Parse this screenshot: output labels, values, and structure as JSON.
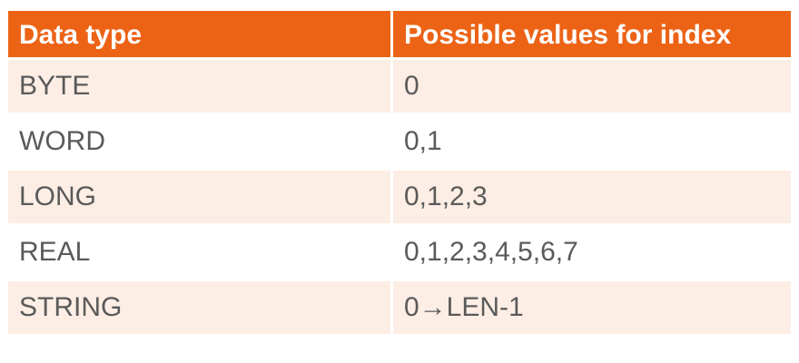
{
  "table": {
    "headers": [
      "Data type",
      "Possible values for index"
    ],
    "rows": [
      [
        "BYTE",
        "0"
      ],
      [
        "WORD",
        "0,1"
      ],
      [
        "LONG",
        "0,1,2,3"
      ],
      [
        "REAL",
        "0,1,2,3,4,5,6,7"
      ],
      [
        "STRING",
        "0→LEN-1"
      ]
    ]
  },
  "colors": {
    "header_bg": "#ec6316",
    "header_text": "#ffffff",
    "band_bg": "#fdeee5",
    "body_text": "#5a5a5a"
  }
}
